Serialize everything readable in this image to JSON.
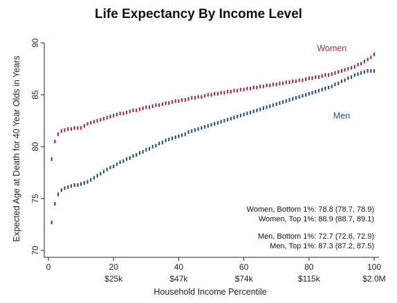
{
  "chart_data": {
    "type": "scatter",
    "title": "Life Expectancy By Income Level",
    "xlabel": "Household Income Percentile",
    "ylabel": "Expected Age at Death for 40 Year Olds in Years",
    "xlim": [
      0,
      100
    ],
    "ylim": [
      70,
      90
    ],
    "x_ticks": [
      0,
      20,
      40,
      60,
      80,
      100
    ],
    "x_income_labels": [
      {
        "x": 20,
        "label": "$25k"
      },
      {
        "x": 40,
        "label": "$47k"
      },
      {
        "x": 60,
        "label": "$74k"
      },
      {
        "x": 80,
        "label": "$115k"
      },
      {
        "x": 100,
        "label": "$2.0M"
      }
    ],
    "y_ticks": [
      70,
      75,
      80,
      85,
      90
    ],
    "grid": false,
    "series": [
      {
        "name": "Women",
        "color": "#a0304a",
        "x": [
          1,
          2,
          3,
          4,
          5,
          6,
          7,
          8,
          9,
          10,
          11,
          12,
          13,
          14,
          15,
          16,
          17,
          18,
          19,
          20,
          21,
          22,
          23,
          24,
          25,
          26,
          27,
          28,
          29,
          30,
          31,
          32,
          33,
          34,
          35,
          36,
          37,
          38,
          39,
          40,
          41,
          42,
          43,
          44,
          45,
          46,
          47,
          48,
          49,
          50,
          51,
          52,
          53,
          54,
          55,
          56,
          57,
          58,
          59,
          60,
          61,
          62,
          63,
          64,
          65,
          66,
          67,
          68,
          69,
          70,
          71,
          72,
          73,
          74,
          75,
          76,
          77,
          78,
          79,
          80,
          81,
          82,
          83,
          84,
          85,
          86,
          87,
          88,
          89,
          90,
          91,
          92,
          93,
          94,
          95,
          96,
          97,
          98,
          99,
          100
        ],
        "values": [
          78.8,
          80.5,
          81.2,
          81.5,
          81.6,
          81.7,
          81.7,
          81.8,
          81.8,
          81.8,
          82.0,
          82.2,
          82.3,
          82.4,
          82.5,
          82.6,
          82.7,
          82.8,
          82.9,
          83.0,
          83.1,
          83.2,
          83.2,
          83.3,
          83.4,
          83.5,
          83.5,
          83.6,
          83.7,
          83.8,
          83.8,
          83.9,
          84.0,
          84.0,
          84.1,
          84.2,
          84.2,
          84.3,
          84.4,
          84.4,
          84.5,
          84.5,
          84.6,
          84.7,
          84.7,
          84.8,
          84.8,
          84.9,
          85.0,
          85.0,
          85.1,
          85.1,
          85.2,
          85.2,
          85.3,
          85.3,
          85.4,
          85.4,
          85.5,
          85.5,
          85.6,
          85.6,
          85.7,
          85.7,
          85.8,
          85.8,
          85.9,
          85.9,
          86.0,
          86.0,
          86.1,
          86.1,
          86.2,
          86.2,
          86.3,
          86.3,
          86.4,
          86.4,
          86.5,
          86.6,
          86.6,
          86.7,
          86.7,
          86.8,
          86.9,
          86.9,
          87.0,
          87.1,
          87.2,
          87.3,
          87.4,
          87.5,
          87.6,
          87.7,
          87.9,
          88.0,
          88.2,
          88.4,
          88.6,
          88.9
        ]
      },
      {
        "name": "Men",
        "color": "#2d4f78",
        "x": [
          1,
          2,
          3,
          4,
          5,
          6,
          7,
          8,
          9,
          10,
          11,
          12,
          13,
          14,
          15,
          16,
          17,
          18,
          19,
          20,
          21,
          22,
          23,
          24,
          25,
          26,
          27,
          28,
          29,
          30,
          31,
          32,
          33,
          34,
          35,
          36,
          37,
          38,
          39,
          40,
          41,
          42,
          43,
          44,
          45,
          46,
          47,
          48,
          49,
          50,
          51,
          52,
          53,
          54,
          55,
          56,
          57,
          58,
          59,
          60,
          61,
          62,
          63,
          64,
          65,
          66,
          67,
          68,
          69,
          70,
          71,
          72,
          73,
          74,
          75,
          76,
          77,
          78,
          79,
          80,
          81,
          82,
          83,
          84,
          85,
          86,
          87,
          88,
          89,
          90,
          91,
          92,
          93,
          94,
          95,
          96,
          97,
          98,
          99,
          100
        ],
        "values": [
          72.7,
          74.5,
          75.4,
          75.8,
          76.0,
          76.1,
          76.2,
          76.3,
          76.3,
          76.4,
          76.5,
          76.6,
          76.8,
          77.0,
          77.2,
          77.4,
          77.6,
          77.8,
          78.0,
          78.1,
          78.3,
          78.5,
          78.6,
          78.8,
          78.9,
          79.1,
          79.2,
          79.4,
          79.5,
          79.7,
          79.8,
          80.0,
          80.1,
          80.3,
          80.4,
          80.6,
          80.7,
          80.8,
          80.9,
          81.0,
          81.1,
          81.2,
          81.4,
          81.5,
          81.6,
          81.7,
          81.8,
          81.9,
          82.0,
          82.1,
          82.2,
          82.3,
          82.4,
          82.5,
          82.6,
          82.7,
          82.8,
          82.9,
          83.0,
          83.1,
          83.2,
          83.3,
          83.4,
          83.5,
          83.6,
          83.7,
          83.8,
          83.9,
          84.0,
          84.1,
          84.2,
          84.3,
          84.4,
          84.5,
          84.6,
          84.7,
          84.8,
          84.9,
          85.0,
          85.1,
          85.2,
          85.3,
          85.4,
          85.5,
          85.6,
          85.7,
          85.8,
          86.0,
          86.1,
          86.3,
          86.4,
          86.6,
          86.7,
          86.9,
          87.0,
          87.1,
          87.2,
          87.3,
          87.3,
          87.3
        ]
      }
    ],
    "series_labels": [
      {
        "text": "Women",
        "x": 87,
        "y": 89.2,
        "color": "#a0304a"
      },
      {
        "text": "Men",
        "x": 90,
        "y": 82.7,
        "color": "#2d4f78"
      }
    ],
    "annotations": [
      "Women, Bottom 1%: 78.8 (78.7, 78.9)",
      "Women, Top 1%: 88.9 (88.7, 89.1)",
      "Men, Bottom 1%: 72.7 (72.6, 72.9)",
      "Men, Top 1%: 87.3 (87.2, 87.5)"
    ]
  }
}
